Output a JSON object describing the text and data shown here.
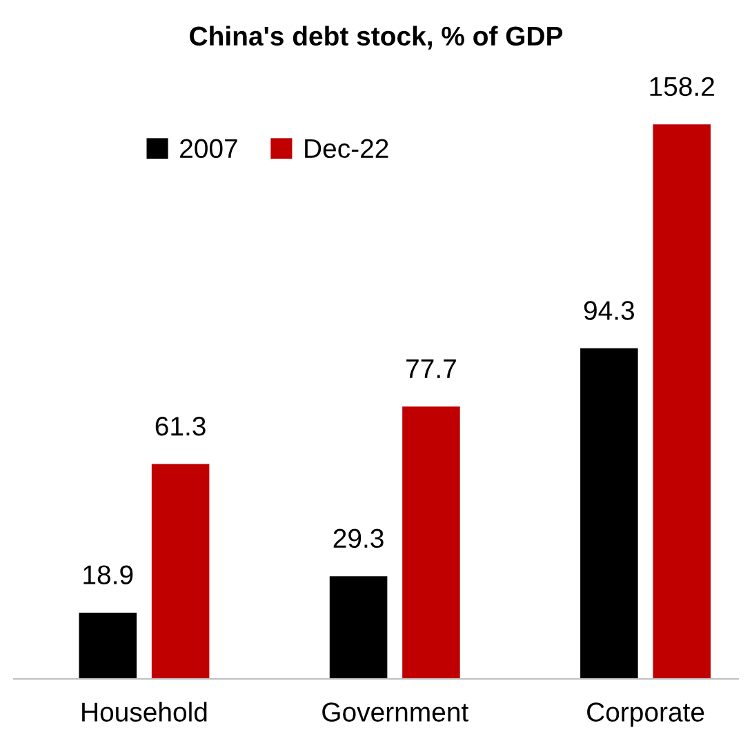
{
  "chart_data": {
    "type": "bar",
    "title": "China's debt stock, % of GDP",
    "categories": [
      "Household",
      "Government",
      "Corporate"
    ],
    "series": [
      {
        "name": "2007",
        "color": "#000000",
        "values": [
          18.9,
          29.3,
          94.3
        ]
      },
      {
        "name": "Dec-22",
        "color": "#c00000",
        "values": [
          61.3,
          77.7,
          158.2
        ]
      }
    ],
    "data_labels": true,
    "legend": "top left",
    "grid": false
  }
}
